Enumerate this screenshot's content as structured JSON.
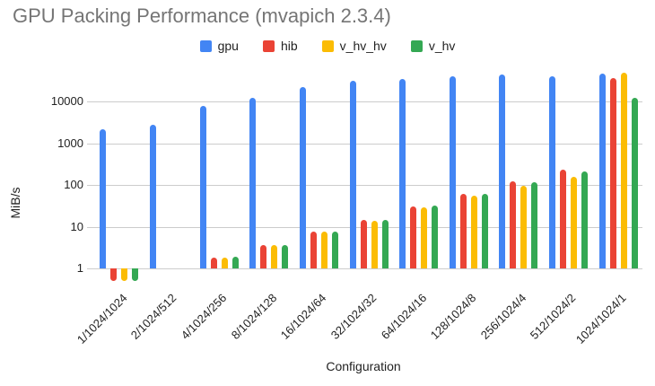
{
  "title": "GPU Packing Performance (mvapich 2.3.4)",
  "colors": {
    "gpu": "#4285F4",
    "hib": "#EA4335",
    "v_hv_hv": "#FBBC04",
    "v_hv": "#34A853",
    "gridline": "#cccccc",
    "title_text": "#757575",
    "axis_text": "#222222"
  },
  "chart_data": {
    "type": "bar",
    "title": "GPU Packing Performance (mvapich 2.3.4)",
    "xlabel": "Configuration",
    "ylabel": "MiB/s",
    "y_scale": "log",
    "y_ticks": [
      1,
      10,
      100,
      1000,
      10000
    ],
    "ylim": [
      0.45,
      60000
    ],
    "grid": true,
    "legend_position": "top",
    "categories": [
      "1/1024/1024",
      "2/1024/512",
      "4/1024/256",
      "8/1024/128",
      "16/1024/64",
      "32/1024/32",
      "64/1024/16",
      "128/1024/8",
      "256/1024/4",
      "512/1024/2",
      "1024/1024/1"
    ],
    "series": [
      {
        "name": "gpu",
        "color": "#4285F4",
        "values": [
          2200,
          2800,
          8000,
          12000,
          22000,
          31000,
          35000,
          40000,
          44000,
          40000,
          46000
        ]
      },
      {
        "name": "hib",
        "color": "#EA4335",
        "values": [
          0.5,
          null,
          1.8,
          3.6,
          7.5,
          14.5,
          30,
          62,
          120,
          230,
          36000
        ]
      },
      {
        "name": "v_hv_hv",
        "color": "#FBBC04",
        "values": [
          0.5,
          null,
          1.8,
          3.7,
          7.8,
          14.0,
          29,
          56,
          95,
          160,
          48000
        ]
      },
      {
        "name": "v_hv",
        "color": "#34A853",
        "values": [
          0.5,
          null,
          1.9,
          3.7,
          7.5,
          14.5,
          32,
          60,
          115,
          210,
          12000
        ]
      }
    ]
  }
}
